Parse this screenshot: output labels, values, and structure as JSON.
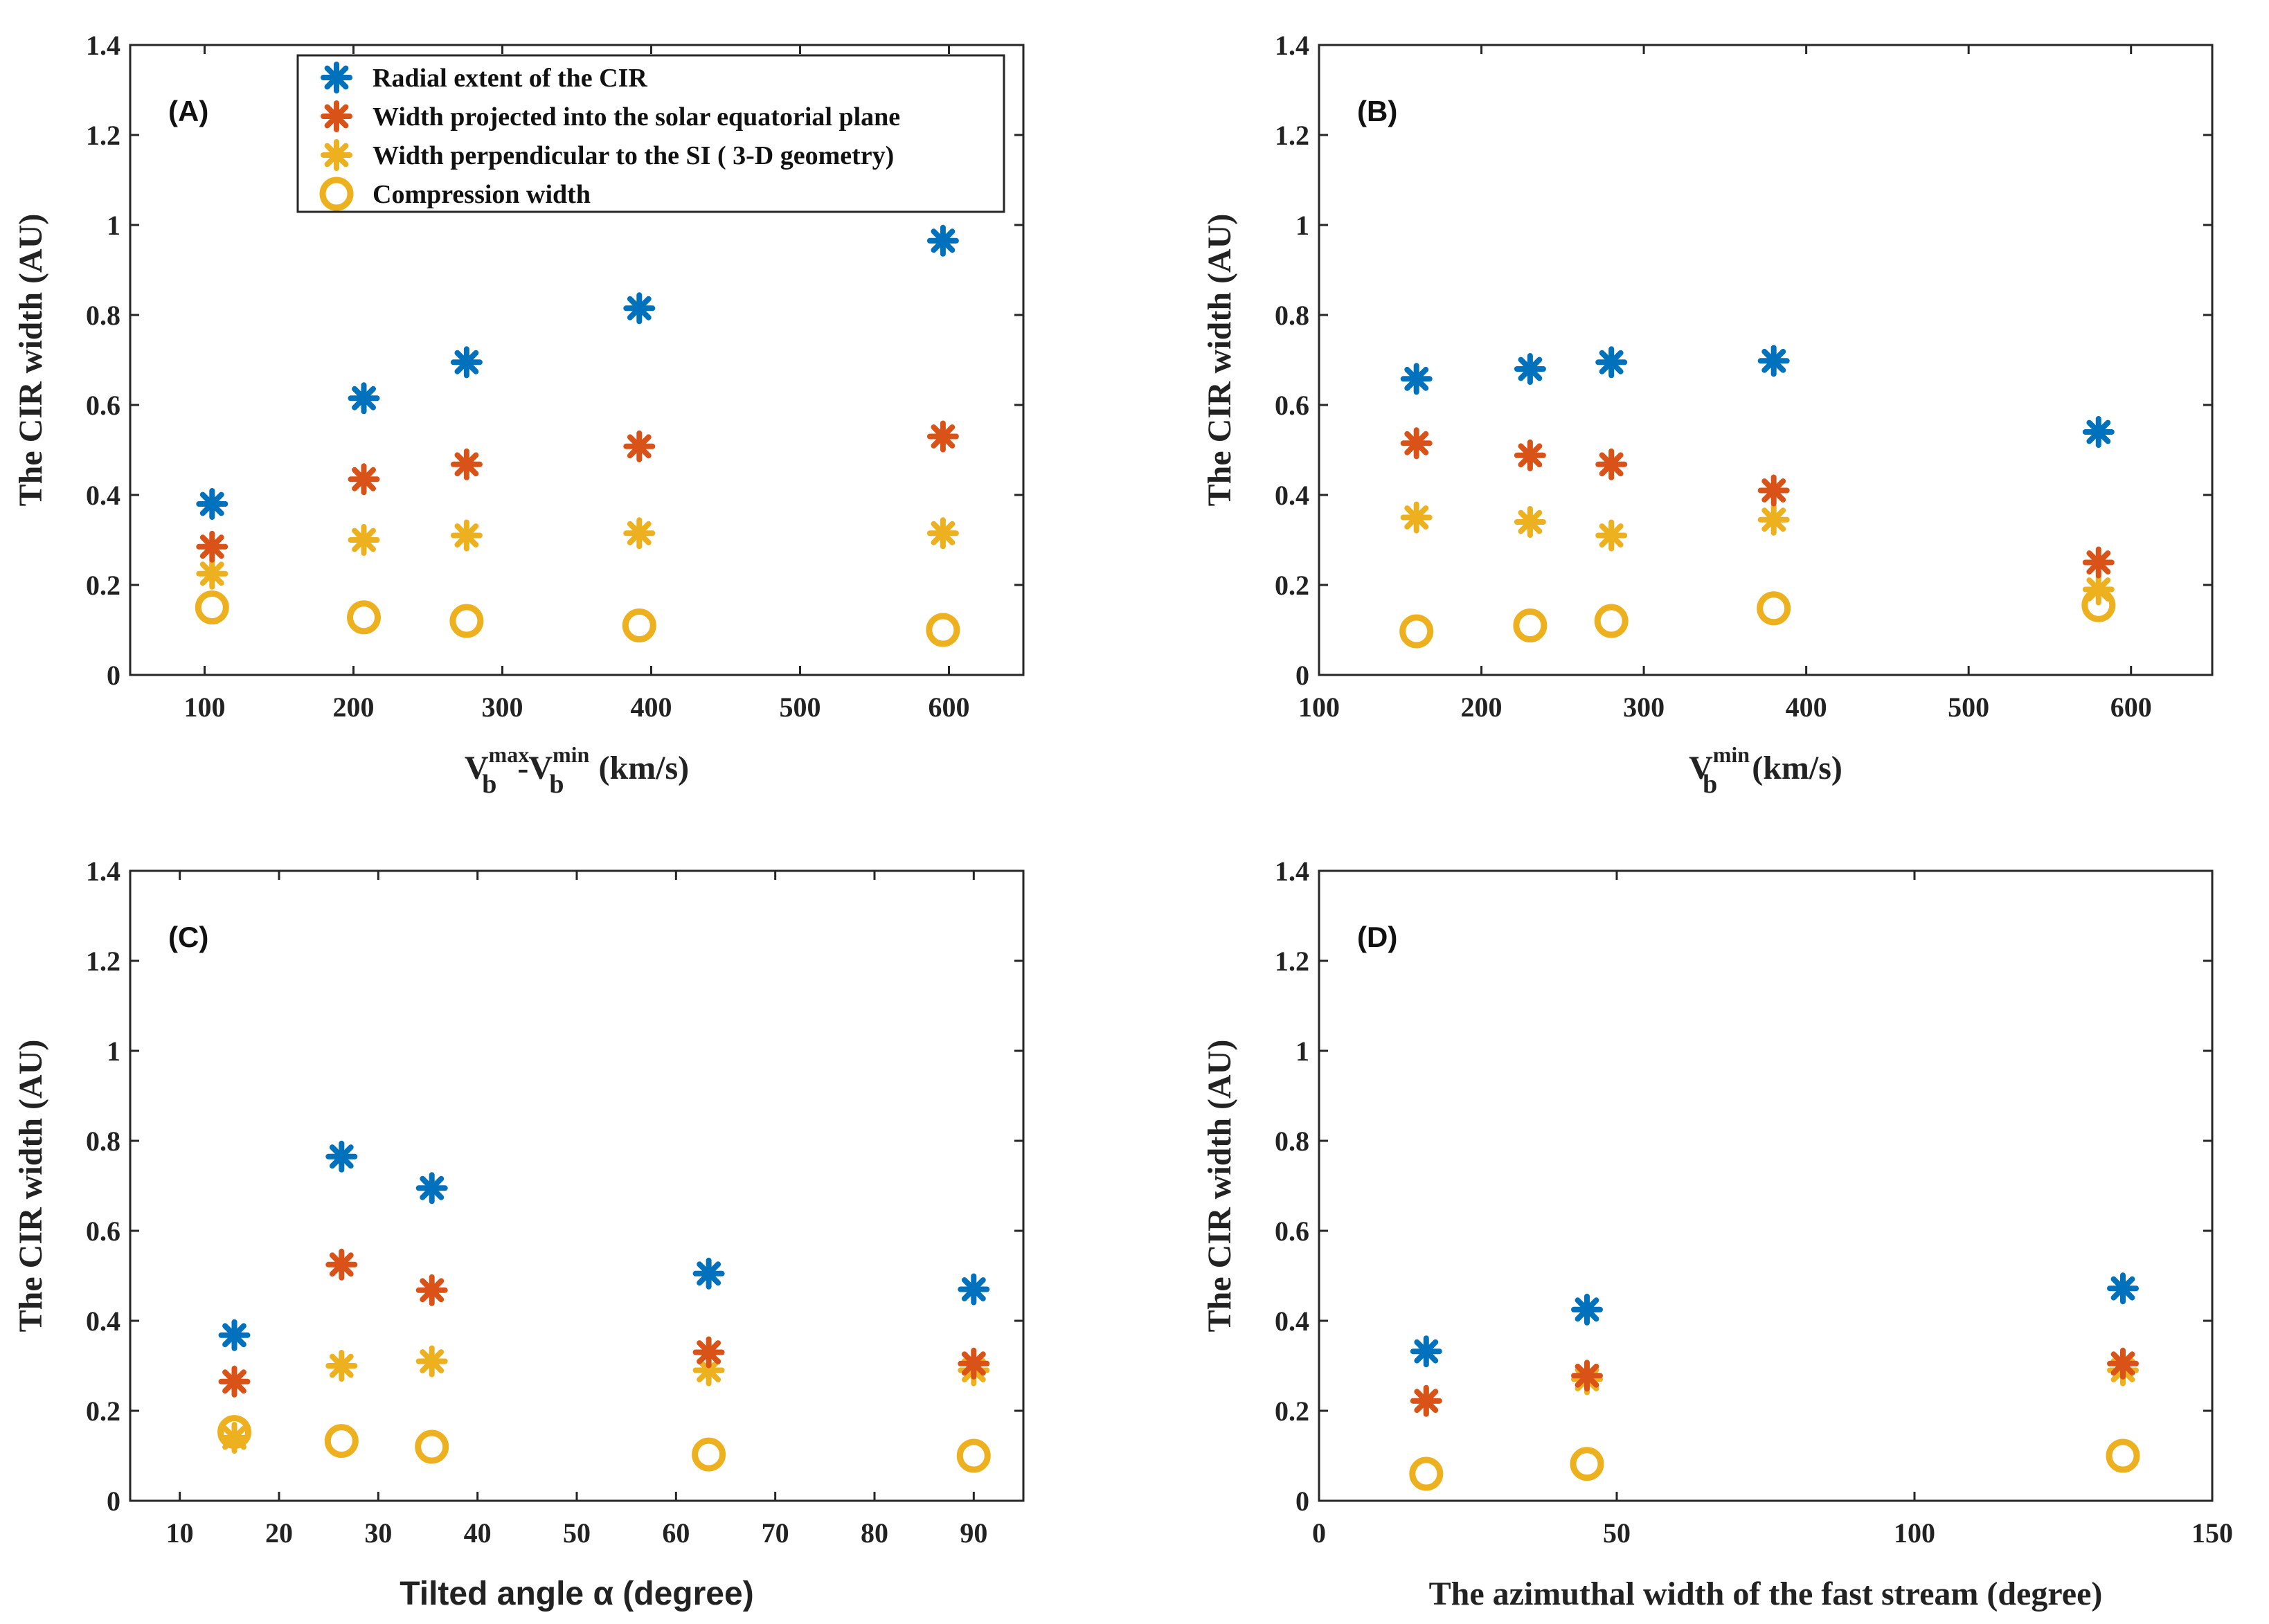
{
  "colors": {
    "radial": "#0072BD",
    "projected": "#D95319",
    "perpendicular": "#EDB120",
    "compression": "#EDB120",
    "axis": "#262626"
  },
  "legend": {
    "items": [
      {
        "key": "radial",
        "label": "Radial extent of the CIR",
        "marker": "asterisk"
      },
      {
        "key": "projected",
        "label": "Width projected into the solar equatorial plane",
        "marker": "asterisk"
      },
      {
        "key": "perpendicular",
        "label": "Width perpendicular to the SI ( 3-D geometry)",
        "marker": "asterisk"
      },
      {
        "key": "compression",
        "label": "Compression width",
        "marker": "circle"
      }
    ]
  },
  "chart_data": [
    {
      "type": "scatter",
      "panel": "(A)",
      "xlabel_parts": {
        "v": "V",
        "sub": "b",
        "sup1": "max",
        "dash": "-",
        "sup2": "min",
        "unit": "(km/s)"
      },
      "ylabel": "The CIR width (AU)",
      "xlim": [
        50,
        650
      ],
      "ylim": [
        0,
        1.4
      ],
      "xticks": [
        100,
        200,
        300,
        400,
        500,
        600
      ],
      "xtick_labels": [
        "100",
        "200",
        "300",
        "400",
        "500",
        "600"
      ],
      "yticks": [
        0,
        0.2,
        0.4,
        0.6,
        0.8,
        1,
        1.2,
        1.4
      ],
      "ytick_labels": [
        "0",
        "0.2",
        "0.4",
        "0.6",
        "0.8",
        "1",
        "1.2",
        "1.4"
      ],
      "series": [
        {
          "name": "Radial extent of the CIR",
          "key": "radial",
          "x": [
            105,
            207,
            276,
            392,
            596
          ],
          "values": [
            0.38,
            0.615,
            0.695,
            0.815,
            0.965
          ]
        },
        {
          "name": "Width projected into the solar equatorial plane",
          "key": "projected",
          "x": [
            105,
            207,
            276,
            392,
            596
          ],
          "values": [
            0.285,
            0.435,
            0.468,
            0.508,
            0.53
          ]
        },
        {
          "name": "Width perpendicular to the SI ( 3-D geometry)",
          "key": "perpendicular",
          "x": [
            105,
            207,
            276,
            392,
            596
          ],
          "values": [
            0.225,
            0.3,
            0.31,
            0.315,
            0.315
          ]
        },
        {
          "name": "Compression width",
          "key": "compression",
          "x": [
            105,
            207,
            276,
            392,
            596
          ],
          "values": [
            0.15,
            0.128,
            0.12,
            0.11,
            0.1
          ]
        }
      ]
    },
    {
      "type": "scatter",
      "panel": "(B)",
      "xlabel_parts": {
        "v": "V",
        "sub": "b",
        "sup1": "min",
        "unit": "(km/s)"
      },
      "ylabel": "The CIR width (AU)",
      "xlim": [
        100,
        650
      ],
      "ylim": [
        0,
        1.4
      ],
      "xticks": [
        100,
        200,
        300,
        400,
        500,
        600
      ],
      "xtick_labels": [
        "100",
        "200",
        "300",
        "400",
        "500",
        "600"
      ],
      "yticks": [
        0,
        0.2,
        0.4,
        0.6,
        0.8,
        1,
        1.2,
        1.4
      ],
      "ytick_labels": [
        "0",
        "0.2",
        "0.4",
        "0.6",
        "0.8",
        "1",
        "1.2",
        "1.4"
      ],
      "series": [
        {
          "name": "Radial extent of the CIR",
          "key": "radial",
          "x": [
            160,
            230,
            280,
            380,
            580
          ],
          "values": [
            0.658,
            0.68,
            0.695,
            0.698,
            0.54
          ]
        },
        {
          "name": "Width projected into the solar equatorial plane",
          "key": "projected",
          "x": [
            160,
            230,
            280,
            380,
            580
          ],
          "values": [
            0.515,
            0.488,
            0.468,
            0.41,
            0.25
          ]
        },
        {
          "name": "Width perpendicular to the SI ( 3-D geometry)",
          "key": "perpendicular",
          "x": [
            160,
            230,
            280,
            380,
            580
          ],
          "values": [
            0.35,
            0.34,
            0.31,
            0.345,
            0.19
          ]
        },
        {
          "name": "Compression width",
          "key": "compression",
          "x": [
            160,
            230,
            280,
            380,
            580
          ],
          "values": [
            0.097,
            0.11,
            0.12,
            0.148,
            0.155
          ]
        }
      ]
    },
    {
      "type": "scatter",
      "panel": "(C)",
      "xlabel": "Tilted angle α (degree)",
      "ylabel": "The CIR width (AU)",
      "xlim": [
        5,
        95
      ],
      "ylim": [
        0,
        1.4
      ],
      "xticks": [
        10,
        20,
        30,
        40,
        50,
        60,
        70,
        80,
        90
      ],
      "xtick_labels": [
        "10",
        "20",
        "30",
        "40",
        "50",
        "60",
        "70",
        "80",
        "90"
      ],
      "yticks": [
        0,
        0.2,
        0.4,
        0.6,
        0.8,
        1,
        1.2,
        1.4
      ],
      "ytick_labels": [
        "0",
        "0.2",
        "0.4",
        "0.6",
        "0.8",
        "1",
        "1.2",
        "1.4"
      ],
      "series": [
        {
          "name": "Radial extent of the CIR",
          "key": "radial",
          "x": [
            15.5,
            26.3,
            35.4,
            63.3,
            90
          ],
          "values": [
            0.368,
            0.765,
            0.695,
            0.505,
            0.47
          ]
        },
        {
          "name": "Width projected into the solar equatorial plane",
          "key": "projected",
          "x": [
            15.5,
            26.3,
            35.4,
            63.3,
            90
          ],
          "values": [
            0.265,
            0.525,
            0.468,
            0.33,
            0.305
          ]
        },
        {
          "name": "Width perpendicular to the SI ( 3-D geometry)",
          "key": "perpendicular",
          "x": [
            15.5,
            26.3,
            35.4,
            63.3,
            90
          ],
          "values": [
            0.14,
            0.3,
            0.31,
            0.29,
            0.29
          ]
        },
        {
          "name": "Compression width",
          "key": "compression",
          "x": [
            15.5,
            26.3,
            35.4,
            63.3,
            90
          ],
          "values": [
            0.153,
            0.133,
            0.12,
            0.103,
            0.1
          ]
        }
      ]
    },
    {
      "type": "scatter",
      "panel": "(D)",
      "xlabel": "The azimuthal width of the fast stream (degree)",
      "ylabel": "The CIR width (AU)",
      "xlim": [
        0,
        150
      ],
      "ylim": [
        0,
        1.4
      ],
      "xticks": [
        0,
        50,
        100,
        150
      ],
      "xtick_labels": [
        "0",
        "50",
        "100",
        "150"
      ],
      "yticks": [
        0,
        0.2,
        0.4,
        0.6,
        0.8,
        1,
        1.2,
        1.4
      ],
      "ytick_labels": [
        "0",
        "0.2",
        "0.4",
        "0.6",
        "0.8",
        "1",
        "1.2",
        "1.4"
      ],
      "series": [
        {
          "name": "Radial extent of the CIR",
          "key": "radial",
          "x": [
            18,
            45,
            135
          ],
          "values": [
            0.332,
            0.425,
            0.472
          ]
        },
        {
          "name": "Width projected into the solar equatorial plane",
          "key": "projected",
          "x": [
            18,
            45,
            135
          ],
          "values": [
            0.222,
            0.278,
            0.305
          ]
        },
        {
          "name": "Width perpendicular to the SI ( 3-D geometry)",
          "key": "perpendicular",
          "x": [
            18,
            45,
            135
          ],
          "values": [
            0.222,
            0.27,
            0.29
          ]
        },
        {
          "name": "Compression width",
          "key": "compression",
          "x": [
            18,
            45,
            135
          ],
          "values": [
            0.06,
            0.082,
            0.1
          ]
        }
      ]
    }
  ]
}
